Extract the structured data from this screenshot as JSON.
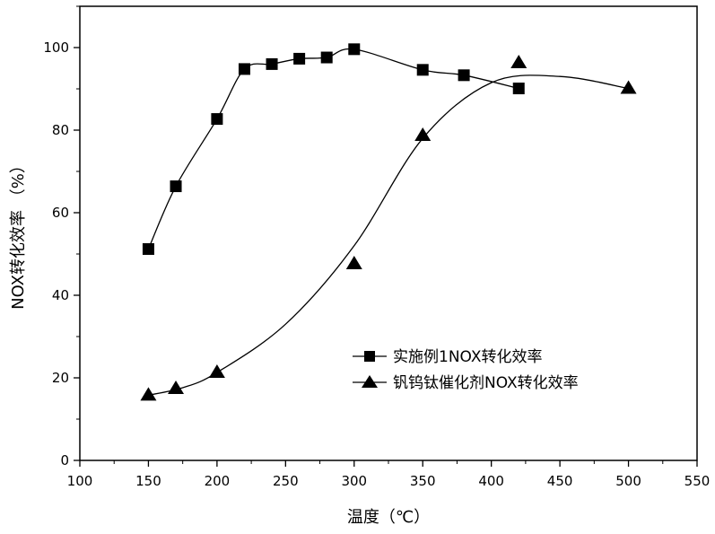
{
  "chart_data": {
    "type": "line",
    "xlabel": "温度（℃）",
    "ylabel": "NOX转化效率 （%）",
    "xlim": [
      100,
      550
    ],
    "ylim": [
      0,
      110
    ],
    "xticks": [
      100,
      150,
      200,
      250,
      300,
      350,
      400,
      450,
      500,
      550
    ],
    "yticks": [
      0,
      20,
      40,
      60,
      80,
      100
    ],
    "grid": false,
    "legend_position": "lower-right",
    "series": [
      {
        "name": "实施例1NOX转化效率",
        "marker": "square",
        "color": "#000000",
        "x": [
          150,
          170,
          200,
          220,
          240,
          260,
          280,
          300,
          350,
          380,
          420
        ],
        "y": [
          51.2,
          66.4,
          82.7,
          94.8,
          96.0,
          97.3,
          97.6,
          99.6,
          94.6,
          93.3,
          90.1
        ]
      },
      {
        "name": "钒钨钛催化剂NOX转化效率",
        "marker": "triangle",
        "color": "#000000",
        "x": [
          150,
          170,
          200,
          300,
          350,
          420,
          500
        ],
        "y": [
          15.8,
          17.4,
          21.3,
          47.6,
          78.7,
          96.3,
          90.1
        ]
      }
    ]
  }
}
